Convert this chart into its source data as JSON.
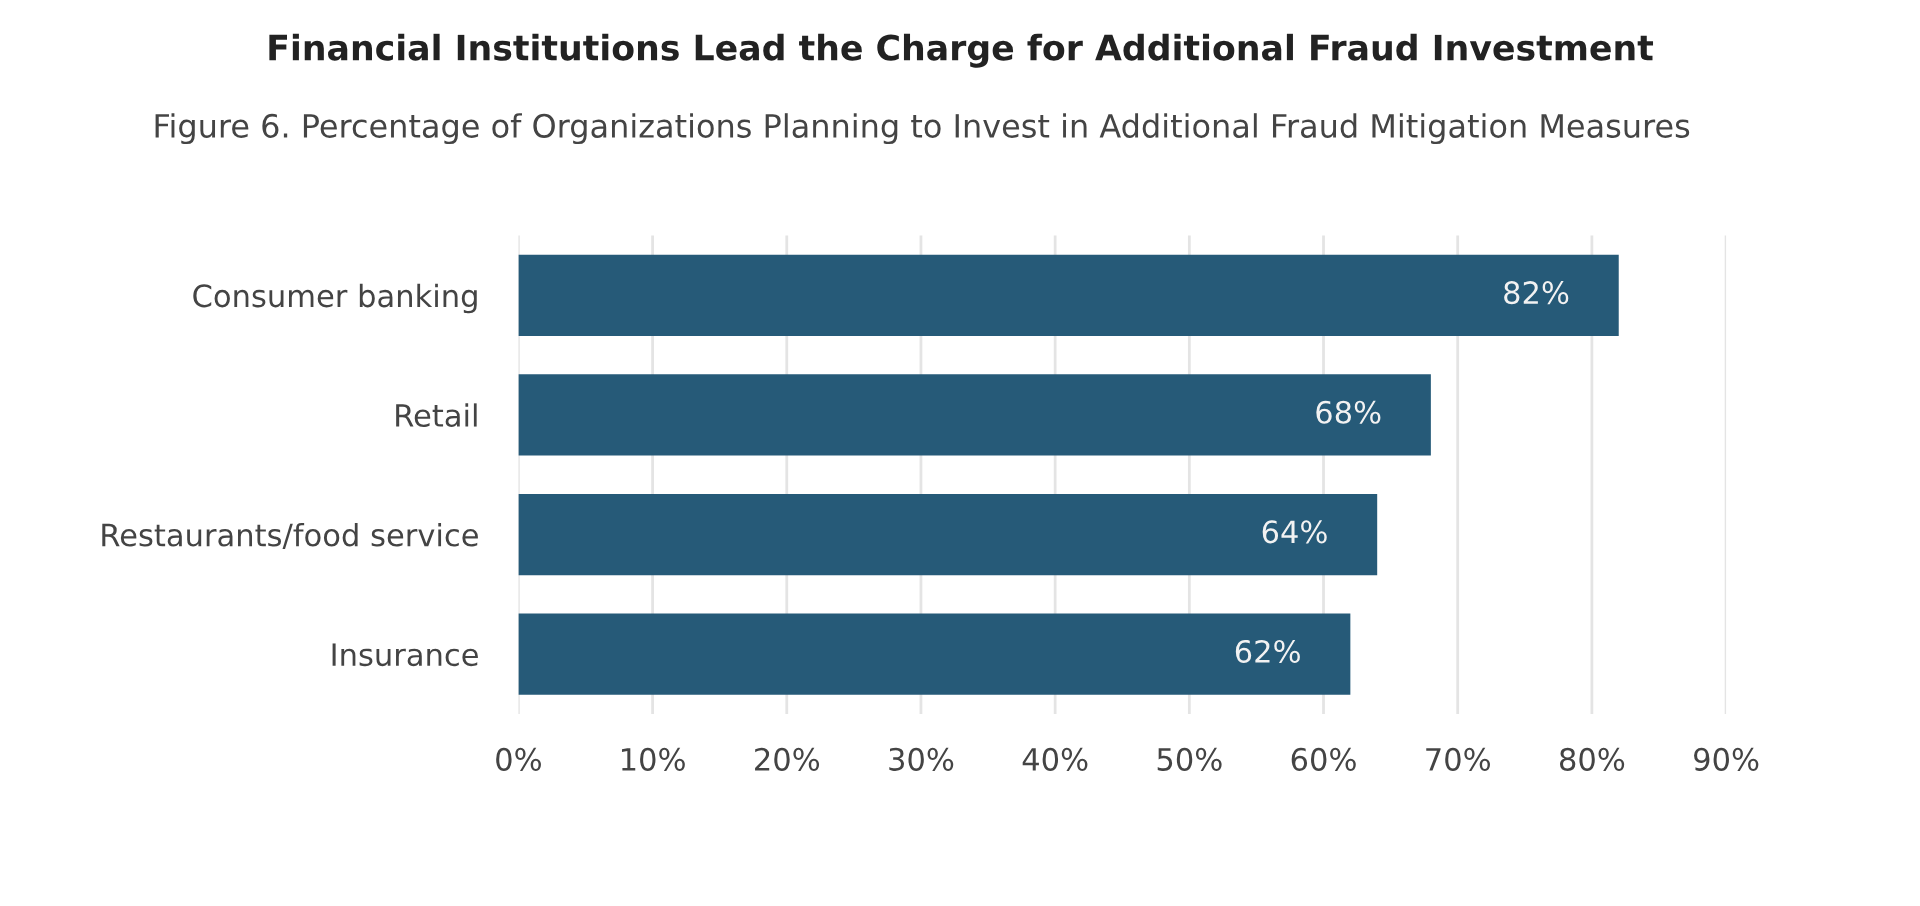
{
  "chart_data": {
    "type": "bar",
    "orientation": "horizontal",
    "title": "Financial Institutions Lead the Charge for Additional Fraud Investment",
    "subtitle": "Figure 6. Percentage of Organizations Planning to Invest in Additional Fraud Mitigation Measures",
    "categories": [
      "Consumer banking",
      "Retail",
      "Restaurants/food service",
      "Insurance"
    ],
    "values": [
      82,
      68,
      64,
      62
    ],
    "value_labels": [
      "82%",
      "68%",
      "64%",
      "62%"
    ],
    "color": "#265a78",
    "xlim": [
      0,
      90
    ],
    "xticks": [
      {
        "value": 0,
        "label": "0%"
      },
      {
        "value": 10,
        "label": "10%"
      },
      {
        "value": 20,
        "label": "20%"
      },
      {
        "value": 30,
        "label": "30%"
      },
      {
        "value": 40,
        "label": "40%"
      },
      {
        "value": 50,
        "label": "50%"
      },
      {
        "value": 60,
        "label": "60%"
      },
      {
        "value": 70,
        "label": "70%"
      },
      {
        "value": 80,
        "label": "80%"
      },
      {
        "value": 90,
        "label": "90%"
      }
    ],
    "grid": "x"
  }
}
